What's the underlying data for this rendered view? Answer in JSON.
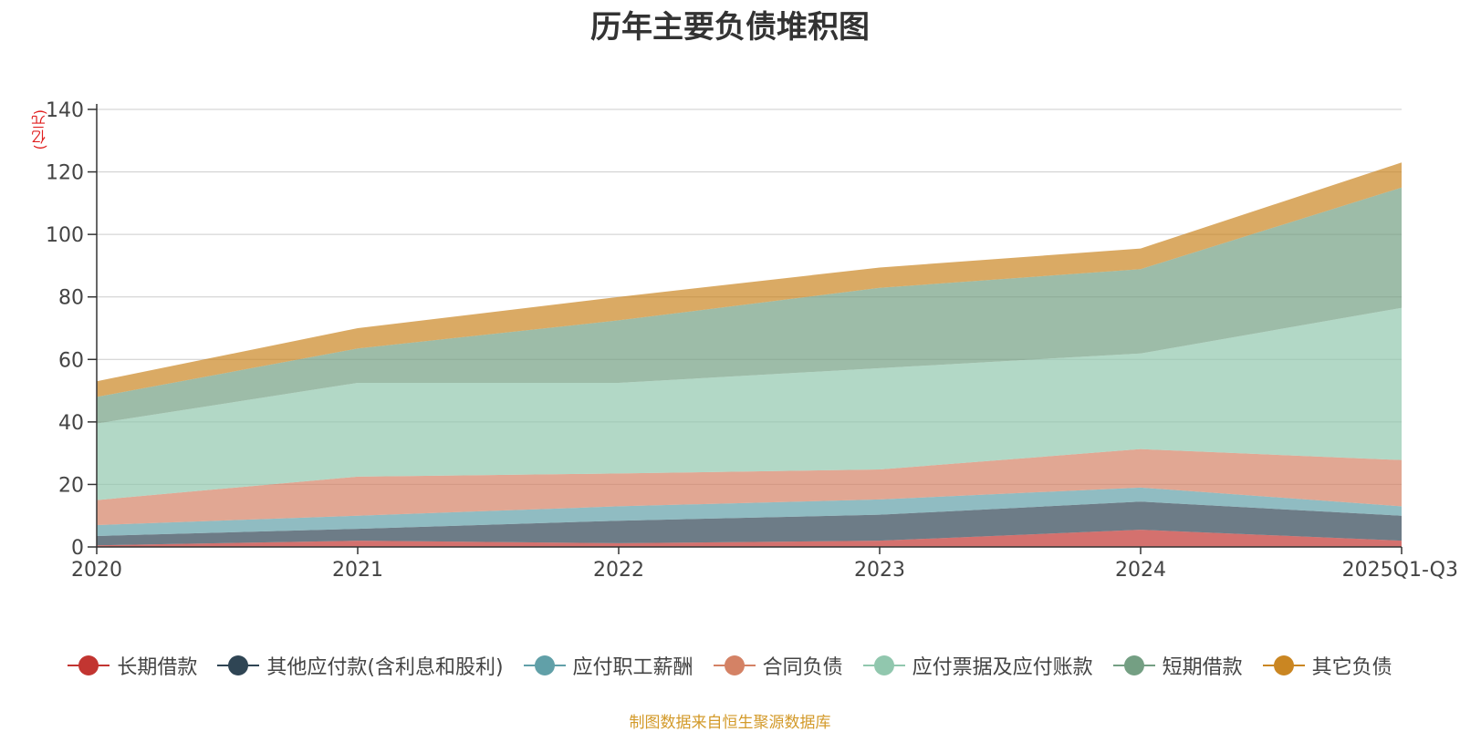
{
  "chart_data": {
    "type": "area",
    "stacked": true,
    "title": "历年主要负债堆积图",
    "unit_label": "(亿元)",
    "categories": [
      "2020",
      "2021",
      "2022",
      "2023",
      "2024",
      "2025Q1-Q3"
    ],
    "ylim": [
      0,
      140
    ],
    "yticks": [
      0,
      20,
      40,
      60,
      80,
      100,
      120,
      140
    ],
    "grid": true,
    "legend_position": "bottom",
    "series": [
      {
        "name": "长期借款",
        "color": "#c23531",
        "values": [
          0.5,
          2,
          1.2,
          2,
          5.5,
          2
        ]
      },
      {
        "name": "其他应付款(含利息和股利)",
        "color": "#2f4554",
        "values": [
          3,
          3.8,
          7.2,
          8.3,
          9,
          8
        ]
      },
      {
        "name": "应付职工薪酬",
        "color": "#61a0a8",
        "values": [
          3.5,
          4.2,
          4.6,
          4.9,
          4.5,
          3
        ]
      },
      {
        "name": "合同负债",
        "color": "#d48265",
        "values": [
          8,
          12.5,
          10.5,
          9.6,
          12.3,
          14.8
        ]
      },
      {
        "name": "应付票据及应付账款",
        "color": "#91c7ae",
        "values": [
          24.5,
          30,
          29,
          32.4,
          30.6,
          48.7
        ]
      },
      {
        "name": "短期借款",
        "color": "#749f83",
        "values": [
          8.5,
          11,
          20,
          25.7,
          27,
          38.5
        ]
      },
      {
        "name": "其它负债",
        "color": "#ca8622",
        "values": [
          5,
          6.5,
          7.5,
          6.5,
          6.6,
          8
        ]
      }
    ]
  },
  "footer": {
    "source": "制图数据来自恒生聚源数据库"
  }
}
